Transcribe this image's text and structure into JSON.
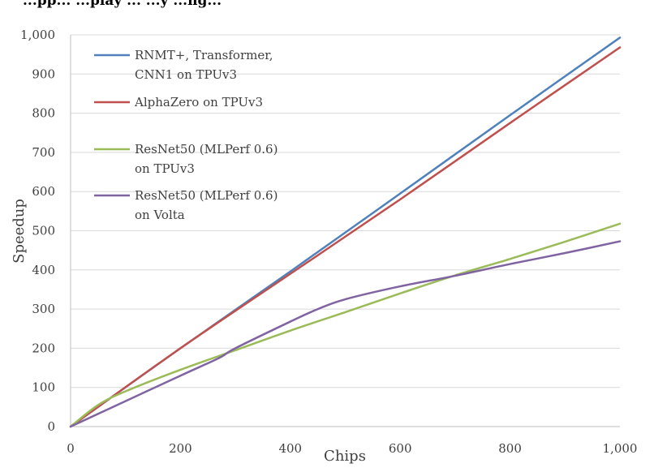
{
  "header_fragment": "...pp... ...play ... ...y ...ng...",
  "chart_data": {
    "type": "line",
    "title": "",
    "xlabel": "Chips",
    "ylabel": "Speedup",
    "xlim": [
      0,
      1000
    ],
    "ylim": [
      0,
      1000
    ],
    "x_ticks": [
      "0",
      "200",
      "400",
      "600",
      "800",
      "1,000"
    ],
    "y_ticks": [
      "0",
      "100",
      "200",
      "300",
      "400",
      "500",
      "600",
      "700",
      "800",
      "900",
      "1,000"
    ],
    "grid": "horizontal",
    "legend_position": "top-left",
    "series": [
      {
        "name_lines": [
          "RNMT+, Transformer,",
          "CNN1 on TPUv3"
        ],
        "color": "#4f81bd",
        "x": [
          0,
          200,
          400,
          600,
          800,
          1000
        ],
        "y": [
          0,
          200,
          396,
          595,
          795,
          993
        ]
      },
      {
        "name_lines": [
          "AlphaZero on TPUv3"
        ],
        "color": "#c0504d",
        "x": [
          0,
          200,
          400,
          600,
          800,
          1000
        ],
        "y": [
          0,
          200,
          390,
          580,
          775,
          968
        ]
      },
      {
        "name_lines": [
          "ResNet50 (MLPerf 0.6)",
          "on TPUv3"
        ],
        "color": "#9bbb59",
        "x": [
          0,
          50,
          100,
          200,
          300,
          400,
          500,
          600,
          700,
          800,
          900,
          1000
        ],
        "y": [
          0,
          55,
          90,
          145,
          195,
          245,
          292,
          340,
          386,
          428,
          472,
          518
        ]
      },
      {
        "name_lines": [
          "ResNet50 (MLPerf 0.6)",
          "on Volta"
        ],
        "color": "#8064a2",
        "x": [
          0,
          100,
          200,
          270,
          300,
          400,
          450,
          500,
          600,
          700,
          800,
          900,
          1000
        ],
        "y": [
          0,
          65,
          130,
          175,
          200,
          268,
          300,
          325,
          358,
          385,
          415,
          443,
          473
        ]
      }
    ]
  }
}
